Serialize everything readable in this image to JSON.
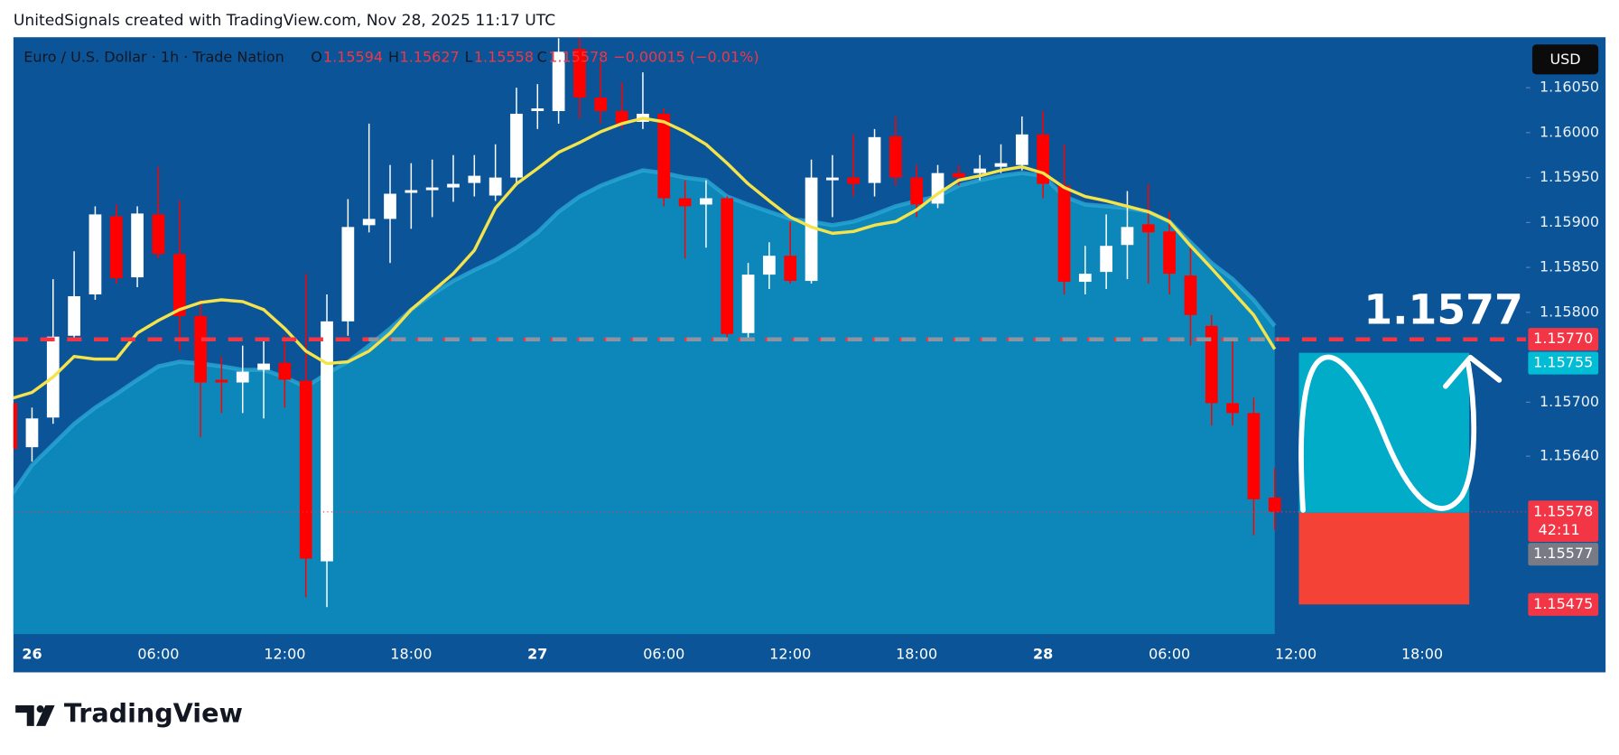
{
  "header": "UnitedSignals created with TradingView.com, Nov 28, 2025 11:17 UTC",
  "watermark": "TradingView",
  "chart_data": {
    "type": "candlestick",
    "legend": {
      "symbol": "Euro / U.S. Dollar · 1h · Trade Nation",
      "open": "O",
      "high": "H",
      "low": "L",
      "close": "C",
      "change": "−0.00015 (−0.01%)"
    },
    "currency": "USD",
    "categories": [
      null,
      "26",
      null,
      null,
      null,
      null,
      null,
      "06:00",
      null,
      null,
      null,
      null,
      null,
      "12:00",
      null,
      null,
      null,
      null,
      null,
      "18:00",
      null,
      null,
      null,
      null,
      null,
      "27",
      null,
      null,
      null,
      null,
      null,
      "06:00",
      null,
      null,
      null,
      null,
      null,
      "12:00",
      null,
      null,
      null,
      null,
      null,
      "18:00",
      null,
      null,
      null,
      null,
      null,
      "28",
      null,
      null,
      null,
      null,
      null,
      "06:00",
      null,
      null,
      null,
      null,
      null,
      "12:00",
      null,
      null,
      null,
      null,
      null,
      "18:00",
      null,
      null,
      null,
      null,
      null
    ],
    "open": [
      1.15699,
      1.1565,
      1.15683,
      1.15774,
      1.1582,
      1.15907,
      1.15839,
      1.15909,
      1.15865,
      1.15796,
      1.15725,
      1.15722,
      1.15736,
      1.15744,
      1.15724,
      1.15523,
      1.1579,
      1.15897,
      1.15904,
      1.15933,
      1.15936,
      1.15939,
      1.15944,
      1.1593,
      1.1595,
      1.16024,
      1.16024,
      1.16093,
      1.16039,
      1.16024,
      1.16012,
      1.16021,
      1.15927,
      1.1592,
      1.15927,
      1.15777,
      1.15842,
      1.15863,
      1.15835,
      1.15947,
      1.1595,
      1.15944,
      1.15996,
      1.1595,
      1.15921,
      1.15955,
      1.15955,
      1.15962,
      1.15964,
      1.15998,
      1.15941,
      1.15834,
      1.15845,
      1.15875,
      1.15898,
      1.1589,
      1.15841,
      1.15785,
      1.15699,
      1.15688,
      1.15594,
      null,
      null,
      null,
      null,
      null,
      null,
      null,
      null,
      null,
      null,
      null,
      null
    ],
    "high": [
      1.15711,
      1.15694,
      1.15837,
      1.15868,
      1.15918,
      1.1592,
      1.15918,
      1.15962,
      1.15924,
      1.15814,
      1.15751,
      1.15763,
      1.15768,
      1.15774,
      1.15843,
      1.1582,
      1.15926,
      1.1601,
      1.15964,
      1.15966,
      1.1597,
      1.15975,
      1.15975,
      1.15987,
      1.1605,
      1.16054,
      1.16113,
      1.16113,
      1.16079,
      1.16056,
      1.16067,
      1.16027,
      1.15947,
      1.15947,
      1.15929,
      1.15855,
      1.15878,
      1.15901,
      1.1597,
      1.15975,
      1.15998,
      1.16004,
      1.16018,
      1.15964,
      1.15964,
      1.15964,
      1.15975,
      1.15987,
      1.16018,
      1.16024,
      1.15987,
      1.15874,
      1.15909,
      1.15935,
      1.15943,
      1.15912,
      1.15872,
      1.15797,
      1.15768,
      1.15705,
      1.15627,
      null,
      null,
      null,
      null,
      null,
      null,
      null,
      null,
      null,
      null,
      null,
      null
    ],
    "low": [
      1.15642,
      1.15634,
      1.15676,
      1.15768,
      1.15814,
      1.15832,
      1.15828,
      1.1586,
      1.15757,
      1.15661,
      1.15688,
      1.15688,
      1.15682,
      1.15694,
      1.15483,
      1.15472,
      1.15774,
      1.15889,
      1.15855,
      1.15893,
      1.15906,
      1.15923,
      1.15929,
      1.15924,
      1.15941,
      1.16004,
      1.1601,
      1.16016,
      1.1601,
      1.16004,
      1.16004,
      1.15918,
      1.1586,
      1.15872,
      1.15768,
      1.15768,
      1.15826,
      1.15832,
      1.15832,
      1.15906,
      1.15929,
      1.15929,
      1.15941,
      1.15906,
      1.15916,
      1.15941,
      1.15947,
      1.15955,
      1.15958,
      1.15927,
      1.1582,
      1.1582,
      1.15826,
      1.15837,
      1.15832,
      1.1582,
      1.15763,
      1.15674,
      1.15674,
      1.15552,
      1.15558,
      null,
      null,
      null,
      null,
      null,
      null,
      null,
      null,
      null,
      null,
      null,
      null
    ],
    "close": [
      1.15648,
      1.15682,
      1.15773,
      1.15818,
      1.15909,
      1.15838,
      1.1591,
      1.15865,
      1.15796,
      1.15722,
      1.15722,
      1.15734,
      1.15743,
      1.15725,
      1.15526,
      1.1579,
      1.15895,
      1.15904,
      1.15932,
      1.15936,
      1.15939,
      1.15943,
      1.15952,
      1.1595,
      1.16021,
      1.16027,
      1.1609,
      1.16039,
      1.16024,
      1.1601,
      1.16021,
      1.15927,
      1.15918,
      1.15927,
      1.15776,
      1.15842,
      1.15863,
      1.15835,
      1.1595,
      1.1595,
      1.15943,
      1.15995,
      1.1595,
      1.1592,
      1.15955,
      1.1595,
      1.1596,
      1.15966,
      1.15998,
      1.15943,
      1.15834,
      1.15843,
      1.15874,
      1.15895,
      1.15889,
      1.15843,
      1.15797,
      1.15699,
      1.15688,
      1.15592,
      1.15578,
      null,
      null,
      null,
      null,
      null,
      null,
      null,
      null,
      null,
      null,
      null,
      null
    ],
    "up_color": "#ffffff",
    "down_color": "#ff0000",
    "series": [
      {
        "type": "area",
        "color": "#0d87b9",
        "values": [
          1.15596,
          1.1563,
          1.15653,
          1.15676,
          1.15694,
          1.15709,
          1.15725,
          1.1574,
          1.15745,
          1.15743,
          1.1574,
          1.15736,
          1.15736,
          1.15728,
          1.15717,
          1.15732,
          1.15745,
          1.15763,
          1.15782,
          1.15803,
          1.1582,
          1.15835,
          1.15847,
          1.15858,
          1.15872,
          1.15889,
          1.15912,
          1.15929,
          1.15941,
          1.1595,
          1.15958,
          1.15955,
          1.1595,
          1.15947,
          1.15929,
          1.1592,
          1.15912,
          1.15904,
          1.15901,
          1.15897,
          1.15901,
          1.15909,
          1.15918,
          1.15924,
          1.15929,
          1.15941,
          1.15947,
          1.15952,
          1.15955,
          1.15952,
          1.15929,
          1.1592,
          1.15918,
          1.15916,
          1.15912,
          1.15901,
          1.15878,
          1.15855,
          1.15837,
          1.15814,
          1.15785,
          null,
          null,
          null,
          null,
          null,
          null,
          null,
          null,
          null,
          null,
          null,
          null
        ]
      },
      {
        "type": "line",
        "color": "#f5e34b",
        "values": [
          1.15704,
          1.15711,
          1.15728,
          1.15751,
          1.15748,
          1.15748,
          1.15777,
          1.15791,
          1.15803,
          1.15811,
          1.15814,
          1.15812,
          1.15803,
          1.15782,
          1.15757,
          1.15743,
          1.15745,
          1.15757,
          1.15777,
          1.15803,
          1.15823,
          1.15843,
          1.15869,
          1.15916,
          1.15943,
          1.1596,
          1.15978,
          1.15989,
          1.16001,
          1.1601,
          1.16016,
          1.16012,
          1.16001,
          1.15987,
          1.15966,
          1.15943,
          1.15924,
          1.15906,
          1.15895,
          1.15888,
          1.1589,
          1.15897,
          1.15901,
          1.15914,
          1.15932,
          1.15947,
          1.15952,
          1.15958,
          1.15962,
          1.15955,
          1.15939,
          1.15929,
          1.15924,
          1.15918,
          1.15912,
          1.15901,
          1.15874,
          1.15849,
          1.15823,
          1.15797,
          1.15759,
          null,
          null,
          null,
          null,
          null,
          null,
          null,
          null,
          null,
          null,
          null,
          null
        ]
      }
    ],
    "ylim": [
      1.15442,
      1.16105
    ],
    "yticks": [
      {
        "value": 1.1605,
        "label": "1.16050"
      },
      {
        "value": 1.16,
        "label": "1.16000"
      },
      {
        "value": 1.1595,
        "label": "1.15950"
      },
      {
        "value": 1.159,
        "label": "1.15900"
      },
      {
        "value": 1.1585,
        "label": "1.15850"
      },
      {
        "value": 1.158,
        "label": "1.15800"
      },
      {
        "value": 1.157,
        "label": "1.15700"
      },
      {
        "value": 1.1564,
        "label": "1.15640"
      }
    ],
    "grid": false,
    "price_labels": [
      {
        "value": 1.1577,
        "label": "1.15770",
        "color": "#f23645"
      },
      {
        "value": 1.15755,
        "label": "1.15755",
        "color": "#00bcd4"
      },
      {
        "value": 1.15578,
        "label": "1.15578",
        "color": "#f23645",
        "countdown": "42:11"
      },
      {
        "value": 1.15577,
        "label": "1.15577",
        "color": "#787b86"
      },
      {
        "value": 1.15475,
        "label": "1.15475",
        "color": "#f23645"
      }
    ],
    "annotation": "1.1577",
    "position": {
      "entry": 1.15577,
      "target": 1.15755,
      "stop": 1.15475,
      "target_color": "#00acc8",
      "stop_color": "#f44336"
    }
  }
}
